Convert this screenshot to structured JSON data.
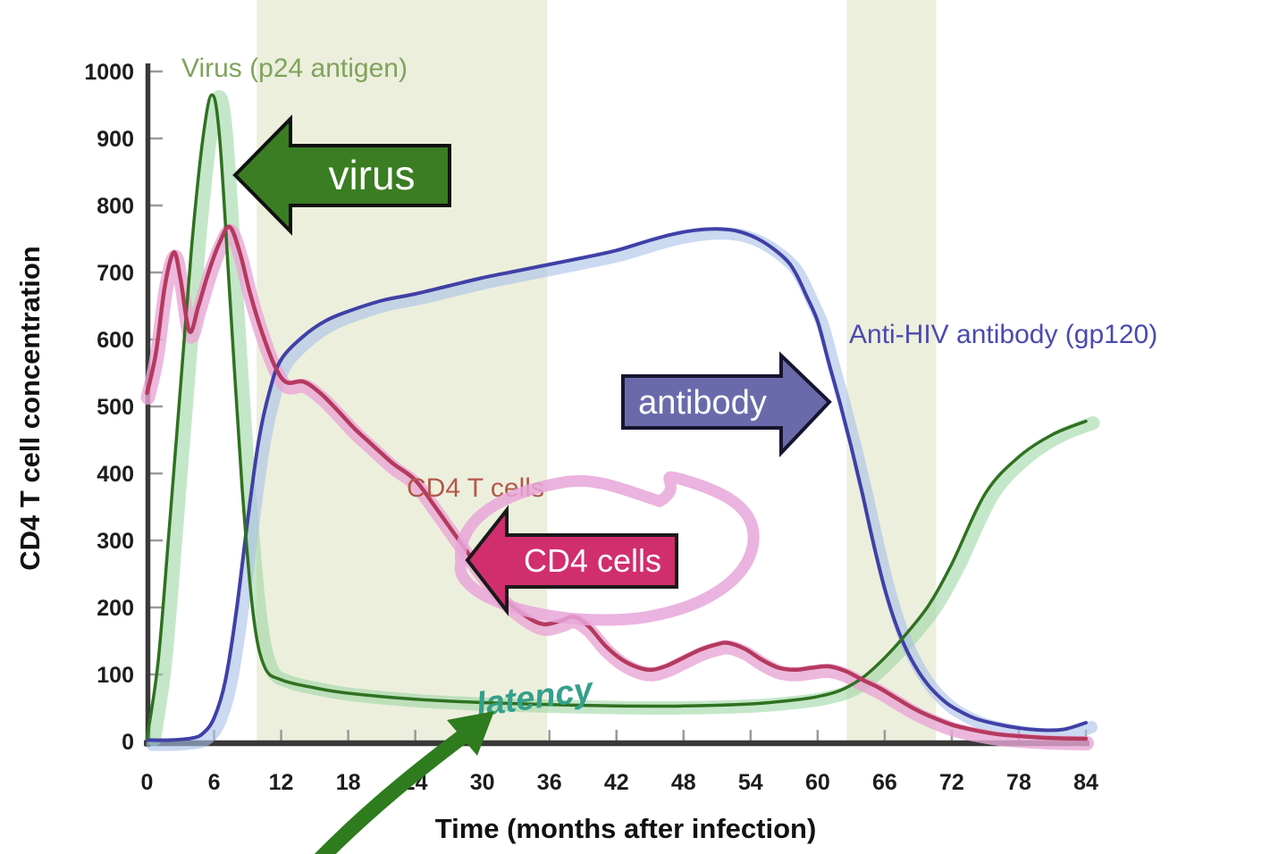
{
  "x_axis": {
    "title": "Time (months after infection)",
    "ticks": [
      0,
      6,
      12,
      18,
      24,
      30,
      36,
      42,
      48,
      54,
      60,
      66,
      72,
      78,
      84
    ],
    "range": [
      0,
      84
    ]
  },
  "y_axis": {
    "title": "CD4 T cell concentration",
    "ticks": [
      0,
      100,
      200,
      300,
      400,
      500,
      600,
      700,
      800,
      900,
      1000
    ],
    "range": [
      0,
      1000
    ]
  },
  "curve_labels": {
    "virus": "Virus (p24 antigen)",
    "cd4": "CD4 T cells",
    "antibody": "Anti-HIV antibody (gp120)"
  },
  "annotations": {
    "virus_arrow_label": "virus",
    "antibody_arrow_label": "antibody",
    "cd4_arrow_label": "CD4 cells",
    "latency_note": "latency"
  },
  "colors": {
    "band": "#edefdd",
    "axis": "#3a3a3a",
    "tick": "#9a9a9a",
    "virus_line": "#2f7120",
    "virus_highlight": "#96d49c",
    "antibody_line": "#4040a6",
    "antibody_highlight": "#a9c0e8",
    "cd4_line": "#b5395f",
    "cd4_highlight": "#e9a6d4",
    "virus_arrow_fill": "#3a7d22",
    "virus_arrow_border": "#111111",
    "antibody_arrow_fill": "#6a6aab",
    "antibody_arrow_border": "#15152f",
    "cd4_arrow_fill": "#d12e6e",
    "cd4_arrow_border": "#1a1a1a",
    "loop_pink": "#e7a6d9",
    "latency_teal": "#35a08b",
    "latency_arrow_green": "#2e7c1e",
    "label_virus": "#7fa35c",
    "label_cd4": "#b3574b",
    "label_antibody": "#4a4ab0"
  },
  "chart_data": {
    "type": "line",
    "title": "",
    "xlabel": "Time (months after infection)",
    "ylabel": "CD4 T cell concentration",
    "xlim": [
      0,
      84
    ],
    "ylim": [
      0,
      1000
    ],
    "x_ticks": [
      0,
      6,
      12,
      18,
      24,
      30,
      36,
      42,
      48,
      54,
      60,
      66,
      72,
      78,
      84
    ],
    "y_ticks": [
      0,
      100,
      200,
      300,
      400,
      500,
      600,
      700,
      800,
      900,
      1000
    ],
    "grid": false,
    "legend": "inline curve labels",
    "shaded_bands_months": [
      {
        "from": 9.8,
        "to": 35.8
      },
      {
        "from": 62.6,
        "to": 70.6
      }
    ],
    "series": [
      {
        "id": "virus",
        "name": "Virus (p24 antigen)",
        "x": [
          0,
          1,
          2,
          3,
          4,
          5,
          5.8,
          6.5,
          7.5,
          8.5,
          9.5,
          10.5,
          12,
          15,
          18,
          24,
          30,
          36,
          42,
          48,
          54,
          58,
          60,
          62,
          64,
          66,
          68,
          70,
          72,
          75,
          78,
          81,
          84
        ],
        "y": [
          5,
          120,
          320,
          530,
          740,
          900,
          965,
          900,
          640,
          380,
          190,
          112,
          92,
          80,
          72,
          63,
          58,
          55,
          53,
          53,
          56,
          62,
          67,
          76,
          95,
          125,
          162,
          205,
          265,
          370,
          425,
          458,
          478
        ]
      },
      {
        "id": "antibody",
        "name": "Anti-HIV antibody (gp120)",
        "x": [
          0,
          2,
          4,
          5,
          6,
          7,
          8,
          9,
          10,
          11,
          12,
          14,
          16,
          18,
          21,
          24,
          27,
          30,
          33,
          36,
          39,
          42,
          45,
          47,
          49,
          51,
          53,
          55,
          57,
          58,
          59,
          60,
          61,
          62,
          63,
          64,
          65,
          66,
          67,
          68,
          69,
          70,
          71,
          72,
          74,
          76,
          78,
          80,
          82,
          84
        ],
        "y": [
          2,
          2,
          5,
          12,
          35,
          90,
          195,
          330,
          450,
          525,
          570,
          605,
          628,
          642,
          658,
          668,
          680,
          692,
          702,
          712,
          722,
          733,
          748,
          757,
          763,
          765,
          761,
          747,
          722,
          700,
          665,
          627,
          565,
          505,
          440,
          370,
          295,
          228,
          175,
          135,
          105,
          82,
          65,
          52,
          35,
          26,
          20,
          17,
          18,
          28
        ]
      },
      {
        "id": "cd4",
        "name": "CD4 T cells",
        "x": [
          0,
          0.8,
          1.6,
          2.4,
          3,
          3.8,
          4.6,
          5.5,
          6.5,
          7.4,
          8.3,
          9.2,
          10.3,
          11.5,
          12.5,
          14,
          15.5,
          17,
          18.5,
          20,
          22,
          24,
          26,
          28,
          30,
          32,
          34,
          35.5,
          37,
          38.2,
          39.5,
          41,
          42.5,
          44,
          45.2,
          46.5,
          48,
          49.5,
          51,
          52,
          53.5,
          55,
          56.5,
          58,
          59.5,
          61,
          62.5,
          64,
          65.5,
          67,
          68.5,
          70,
          72,
          74,
          76,
          78,
          81,
          84
        ],
        "y": [
          520,
          580,
          680,
          730,
          690,
          612,
          650,
          700,
          745,
          768,
          730,
          670,
          610,
          558,
          536,
          537,
          520,
          495,
          468,
          445,
          415,
          390,
          345,
          298,
          252,
          213,
          186,
          175,
          180,
          186,
          172,
          143,
          122,
          110,
          107,
          113,
          125,
          137,
          145,
          147,
          138,
          122,
          110,
          107,
          110,
          112,
          105,
          92,
          80,
          65,
          50,
          38,
          25,
          17,
          11,
          8,
          5,
          4
        ]
      }
    ]
  }
}
